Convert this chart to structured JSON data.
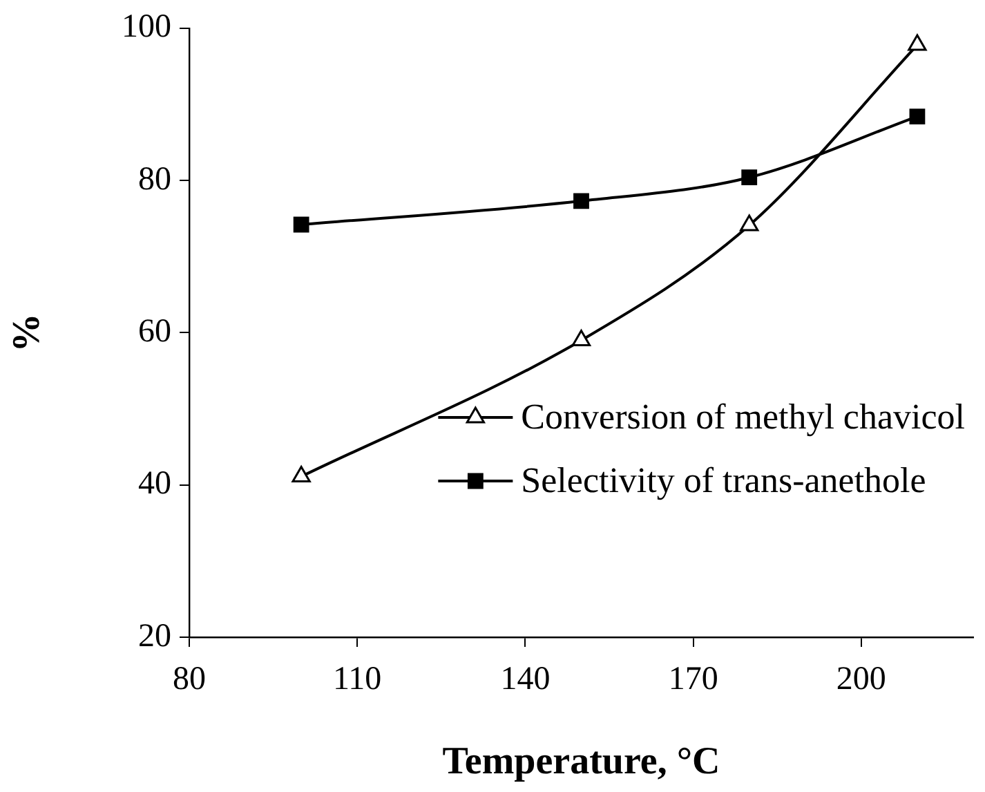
{
  "chart_data": {
    "type": "line",
    "xlabel": "Temperature, °C",
    "ylabel": "%",
    "x": [
      100,
      150,
      180,
      210
    ],
    "series": [
      {
        "name": "Conversion of methyl chavicol",
        "color": "#000000",
        "marker": "triangle",
        "values": [
          41.1,
          59.0,
          74.1,
          97.8
        ]
      },
      {
        "name": "Selectivity of trans-anethole",
        "color": "#000000",
        "marker": "square",
        "values": [
          74.2,
          77.3,
          80.4,
          88.4
        ]
      }
    ],
    "xlim": [
      80,
      220
    ],
    "xticks": [
      80,
      110,
      140,
      170,
      200
    ],
    "ylim": [
      20,
      100
    ],
    "yticks": [
      20,
      40,
      60,
      80,
      100
    ],
    "grid": false,
    "legend": "bottom right",
    "line_style": "solid"
  }
}
